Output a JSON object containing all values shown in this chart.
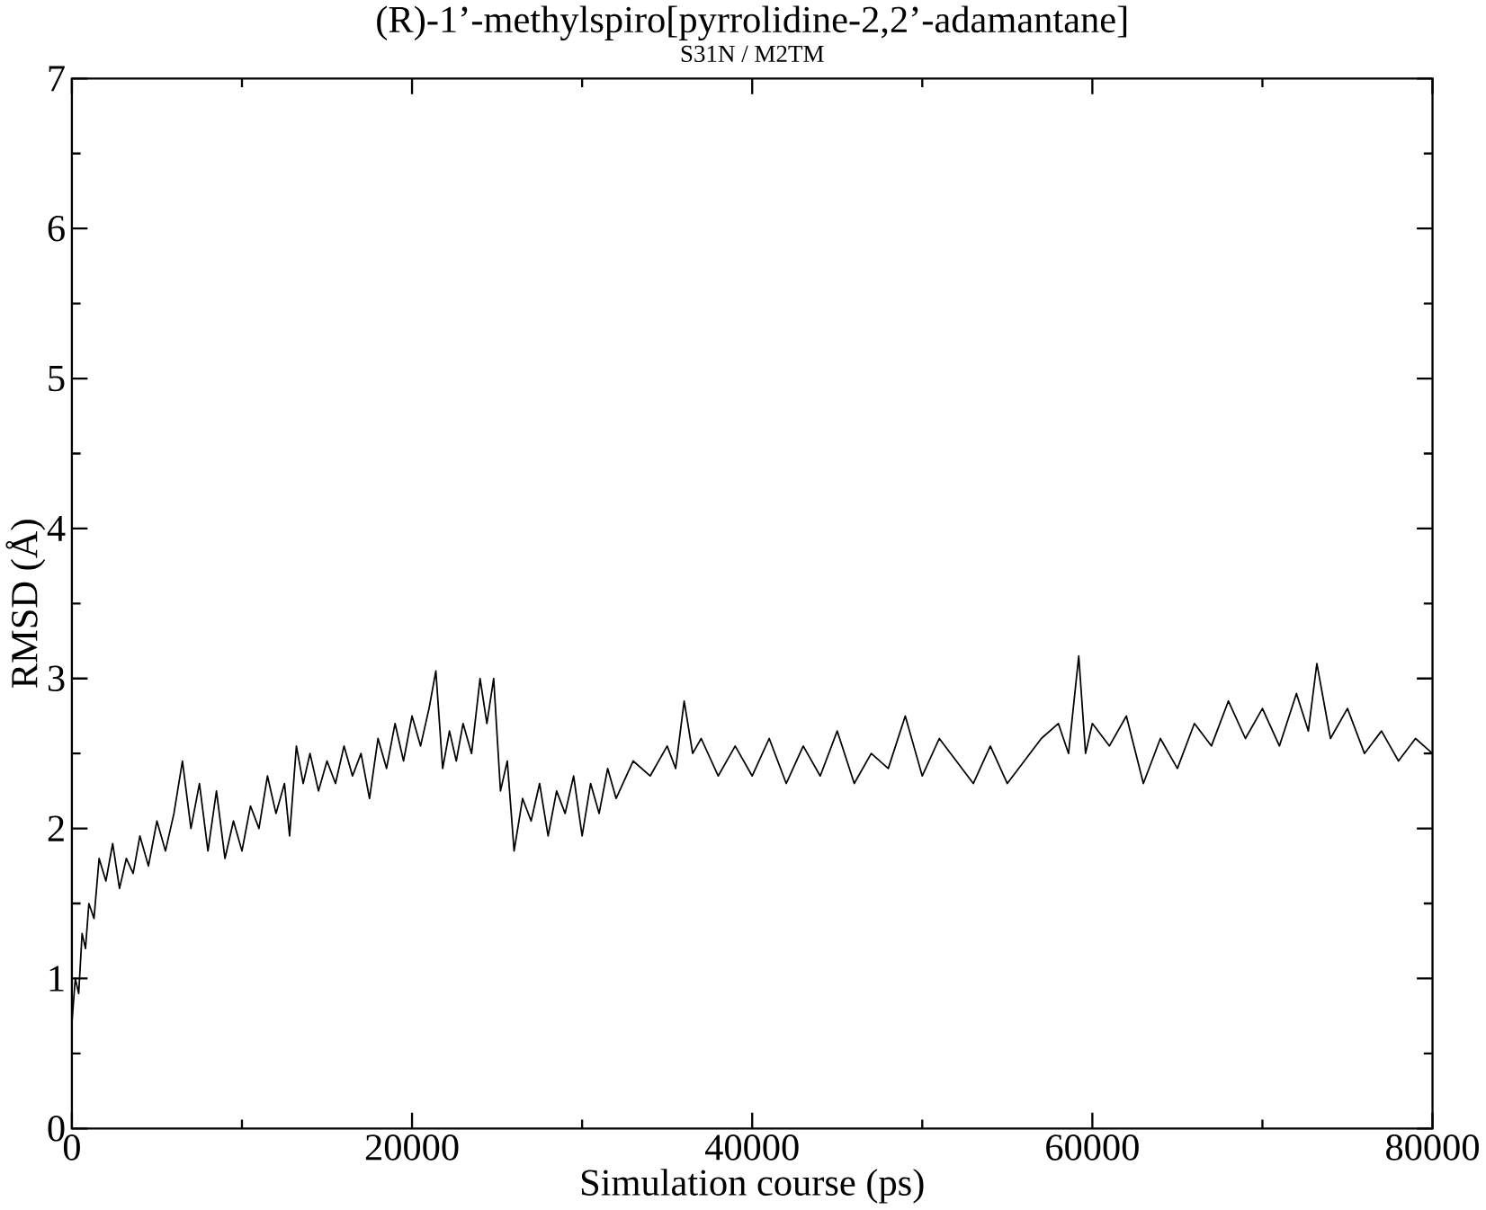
{
  "chart_data": {
    "type": "line",
    "title": "(R)-1’-methylspiro[pyrrolidine-2,2’-adamantane]",
    "subtitle": "S31N / M2TM",
    "xlabel": "Simulation course (ps)",
    "ylabel": "RMSD (Å)",
    "series": [
      {
        "color": "#000000",
        "x": [
          0,
          200,
          400,
          600,
          800,
          1000,
          1300,
          1600,
          2000,
          2400,
          2800,
          3200,
          3600,
          4000,
          4500,
          5000,
          5500,
          6000,
          6500,
          7000,
          7500,
          8000,
          8500,
          9000,
          9500,
          10000,
          10500,
          11000,
          11500,
          12000,
          12500,
          12800,
          13200,
          13600,
          14000,
          14500,
          15000,
          15500,
          16000,
          16500,
          17000,
          17500,
          18000,
          18500,
          19000,
          19500,
          20000,
          20500,
          21000,
          21400,
          21800,
          22200,
          22600,
          23000,
          23500,
          24000,
          24400,
          24800,
          25200,
          25600,
          26000,
          26500,
          27000,
          27500,
          28000,
          28500,
          29000,
          29500,
          30000,
          30500,
          31000,
          31500,
          32000,
          33000,
          34000,
          35000,
          35500,
          36000,
          36500,
          37000,
          38000,
          39000,
          40000,
          41000,
          42000,
          43000,
          44000,
          45000,
          46000,
          47000,
          48000,
          49000,
          50000,
          51000,
          52000,
          53000,
          54000,
          55000,
          56000,
          57000,
          58000,
          58600,
          59200,
          59600,
          60000,
          61000,
          62000,
          63000,
          64000,
          65000,
          66000,
          67000,
          68000,
          69000,
          70000,
          71000,
          72000,
          72700,
          73200,
          74000,
          75000,
          76000,
          77000,
          78000,
          79000,
          80000
        ],
        "values": [
          0.7,
          1.0,
          0.9,
          1.3,
          1.2,
          1.5,
          1.4,
          1.8,
          1.65,
          1.9,
          1.6,
          1.8,
          1.7,
          1.95,
          1.75,
          2.05,
          1.85,
          2.1,
          2.45,
          2.0,
          2.3,
          1.85,
          2.25,
          1.8,
          2.05,
          1.85,
          2.15,
          2.0,
          2.35,
          2.1,
          2.3,
          1.95,
          2.55,
          2.3,
          2.5,
          2.25,
          2.45,
          2.3,
          2.55,
          2.35,
          2.5,
          2.2,
          2.6,
          2.4,
          2.7,
          2.45,
          2.75,
          2.55,
          2.8,
          3.05,
          2.4,
          2.65,
          2.45,
          2.7,
          2.5,
          3.0,
          2.7,
          3.0,
          2.25,
          2.45,
          1.85,
          2.2,
          2.05,
          2.3,
          1.95,
          2.25,
          2.1,
          2.35,
          1.95,
          2.3,
          2.1,
          2.4,
          2.2,
          2.45,
          2.35,
          2.55,
          2.4,
          2.85,
          2.5,
          2.6,
          2.35,
          2.55,
          2.35,
          2.6,
          2.3,
          2.55,
          2.35,
          2.65,
          2.3,
          2.5,
          2.4,
          2.75,
          2.35,
          2.6,
          2.45,
          2.3,
          2.55,
          2.3,
          2.45,
          2.6,
          2.7,
          2.5,
          3.15,
          2.5,
          2.7,
          2.55,
          2.75,
          2.3,
          2.6,
          2.4,
          2.7,
          2.55,
          2.85,
          2.6,
          2.8,
          2.55,
          2.9,
          2.65,
          3.1,
          2.6,
          2.8,
          2.5,
          2.65,
          2.45,
          2.6,
          2.5
        ]
      }
    ],
    "xlim": [
      0,
      80000
    ],
    "xticks": [
      0,
      20000,
      40000,
      60000,
      80000
    ],
    "ylim": [
      0,
      7
    ],
    "yticks": [
      0,
      1,
      2,
      3,
      4,
      5,
      6,
      7
    ],
    "grid": false,
    "marker": "none",
    "line_style": "solid"
  }
}
